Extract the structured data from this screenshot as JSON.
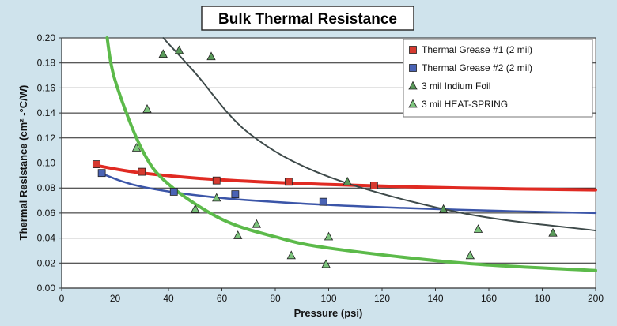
{
  "chart_data": {
    "type": "scatter",
    "title": "Bulk Thermal Resistance",
    "xlabel": "Pressure (psi)",
    "ylabel": "Thermal Resistance (cm² -°C/W)",
    "xlim": [
      0,
      200
    ],
    "ylim": [
      0,
      0.2
    ],
    "x_ticks": [
      "0",
      "20",
      "40",
      "60",
      "80",
      "100",
      "120",
      "140",
      "160",
      "180",
      "200"
    ],
    "y_ticks": [
      "0.00",
      "0.02",
      "0.04",
      "0.06",
      "0.08",
      "0.10",
      "0.12",
      "0.14",
      "0.16",
      "0.18",
      "0.20"
    ],
    "grid": "horizontal",
    "legend_position": "top-right",
    "series": [
      {
        "name": "Thermal Grease #1 (2 mil)",
        "marker": "square",
        "color": "#d63a30",
        "trend_color": "#e02a22",
        "points": [
          [
            13,
            0.099
          ],
          [
            30,
            0.093
          ],
          [
            58,
            0.086
          ],
          [
            85,
            0.085
          ],
          [
            117,
            0.082
          ]
        ],
        "trend": [
          [
            13,
            0.098
          ],
          [
            30,
            0.092
          ],
          [
            60,
            0.0865
          ],
          [
            100,
            0.0828
          ],
          [
            150,
            0.08
          ],
          [
            200,
            0.0785
          ]
        ]
      },
      {
        "name": "Thermal Grease #2 (2 mil)",
        "marker": "square",
        "color": "#4a63b5",
        "trend_color": "#3b55a8",
        "points": [
          [
            15,
            0.092
          ],
          [
            42,
            0.077
          ],
          [
            65,
            0.075
          ],
          [
            98,
            0.069
          ]
        ],
        "trend": [
          [
            15,
            0.0915
          ],
          [
            30,
            0.081
          ],
          [
            60,
            0.072
          ],
          [
            100,
            0.0665
          ],
          [
            150,
            0.0625
          ],
          [
            200,
            0.06
          ]
        ]
      },
      {
        "name": "3 mil Indium Foil",
        "marker": "triangle",
        "color": "#5a9a5a",
        "trend_color": "#3e4a4a",
        "points": [
          [
            38,
            0.187
          ],
          [
            44,
            0.19
          ],
          [
            56,
            0.185
          ],
          [
            107,
            0.085
          ],
          [
            143,
            0.063
          ],
          [
            184,
            0.044
          ]
        ],
        "trend": [
          [
            38,
            0.2
          ],
          [
            50,
            0.172
          ],
          [
            70,
            0.124
          ],
          [
            100,
            0.089
          ],
          [
            150,
            0.06
          ],
          [
            200,
            0.046
          ]
        ]
      },
      {
        "name": "3 mil HEAT-SPRING",
        "marker": "triangle",
        "color": "#7cc47c",
        "trend_color": "#5cba4a",
        "points": [
          [
            28,
            0.112
          ],
          [
            32,
            0.143
          ],
          [
            50,
            0.063
          ],
          [
            58,
            0.072
          ],
          [
            66,
            0.042
          ],
          [
            73,
            0.051
          ],
          [
            86,
            0.026
          ],
          [
            99,
            0.019
          ],
          [
            100,
            0.041
          ],
          [
            153,
            0.026
          ],
          [
            156,
            0.047
          ]
        ],
        "trend": [
          [
            17,
            0.2
          ],
          [
            20,
            0.166
          ],
          [
            30,
            0.111
          ],
          [
            40,
            0.083
          ],
          [
            60,
            0.055
          ],
          [
            80,
            0.041
          ],
          [
            100,
            0.032
          ],
          [
            150,
            0.02
          ],
          [
            200,
            0.014
          ]
        ]
      }
    ]
  }
}
